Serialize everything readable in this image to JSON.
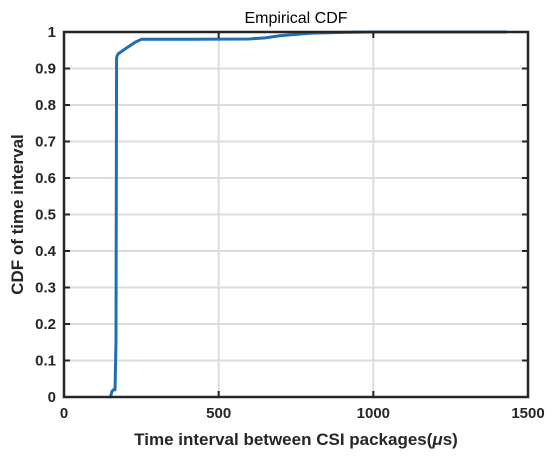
{
  "chart_data": {
    "type": "line",
    "title": "Empirical CDF",
    "xlabel_main": "Time interval between CSI packages(",
    "xlabel_mu": "μ",
    "xlabel_unit": "s)",
    "ylabel": "CDF of time interval",
    "xlim": [
      0,
      1500
    ],
    "ylim": [
      0,
      1
    ],
    "xticks": [
      0,
      500,
      1000,
      1500
    ],
    "xtick_labels": [
      "0",
      "500",
      "1000",
      "1500"
    ],
    "yticks": [
      0,
      0.1,
      0.2,
      0.3,
      0.4,
      0.5,
      0.6,
      0.7,
      0.8,
      0.9,
      1
    ],
    "ytick_labels": [
      "0",
      "0.1",
      "0.2",
      "0.3",
      "0.4",
      "0.5",
      "0.6",
      "0.7",
      "0.8",
      "0.9",
      "1"
    ],
    "grid": true,
    "series": [
      {
        "line_color": "#1f6fb0",
        "x": [
          150,
          155,
          160,
          165,
          168,
          170,
          172,
          175,
          200,
          230,
          250,
          400,
          600,
          650,
          700,
          800,
          900,
          1000,
          1200,
          1430
        ],
        "y": [
          0,
          0.015,
          0.02,
          0.02,
          0.15,
          0.93,
          0.935,
          0.94,
          0.955,
          0.972,
          0.98,
          0.98,
          0.981,
          0.984,
          0.99,
          0.997,
          0.999,
          1,
          1,
          1
        ]
      }
    ]
  }
}
